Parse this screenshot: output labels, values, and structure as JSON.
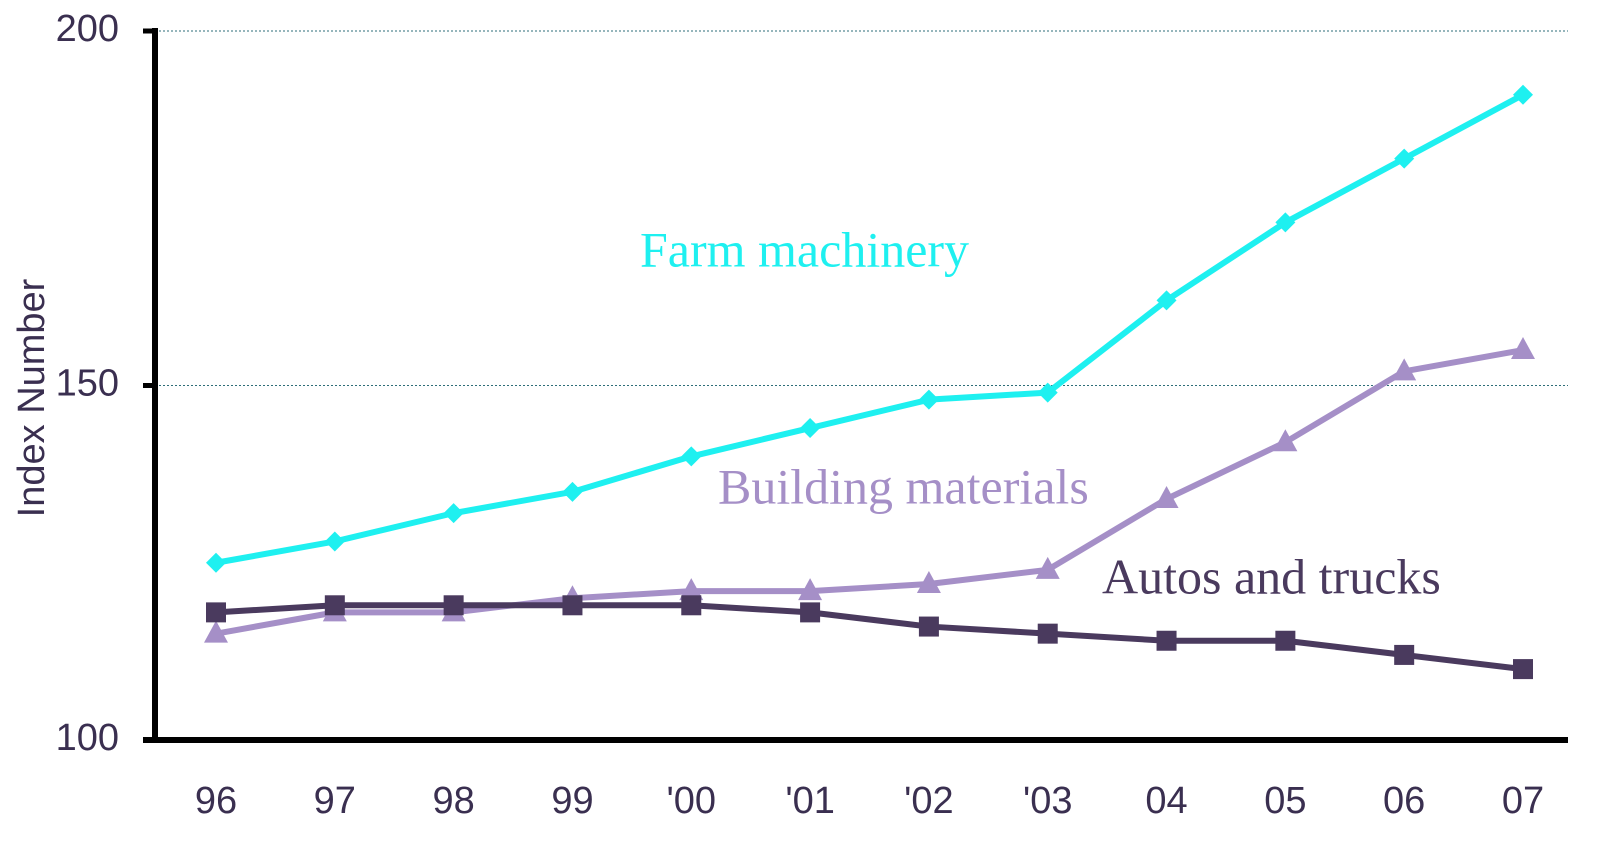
{
  "chart_data": {
    "type": "line",
    "y_label": "Index Number",
    "categories": [
      "96",
      "97",
      "98",
      "99",
      "'00",
      "'01",
      "'02",
      "'03",
      "04",
      "05",
      "06",
      "07"
    ],
    "series": [
      {
        "name": "Farm machinery",
        "color": "#1ef0f0",
        "marker": "diamond",
        "values": [
          125,
          128,
          132,
          135,
          140,
          144,
          148,
          149,
          162,
          173,
          182,
          191
        ]
      },
      {
        "name": "Building materials",
        "color": "#a58fc7",
        "marker": "triangle",
        "values": [
          115,
          118,
          118,
          120,
          121,
          121,
          122,
          124,
          134,
          142,
          152,
          155
        ]
      },
      {
        "name": "Autos and trucks",
        "color": "#4a3a5e",
        "marker": "square",
        "values": [
          118,
          119,
          119,
          119,
          119,
          118,
          116,
          115,
          114,
          114,
          112,
          110
        ]
      }
    ],
    "ylim": [
      100,
      200
    ],
    "yticks": [
      100,
      150,
      200
    ],
    "grid": true
  }
}
